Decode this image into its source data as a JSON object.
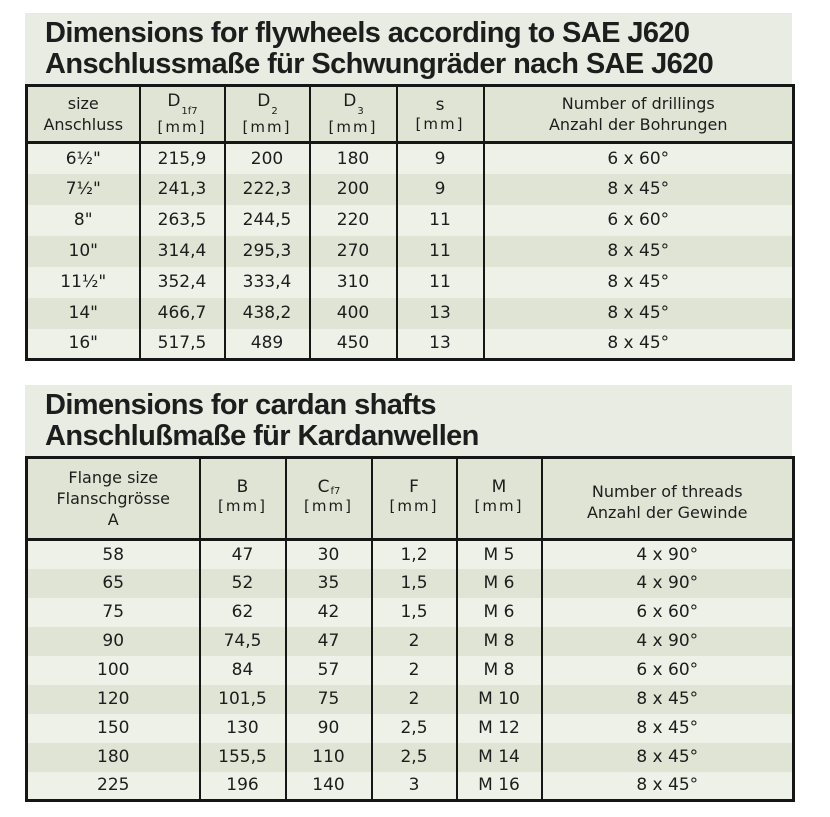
{
  "colors": {
    "page_bg": "#ffffff",
    "panel_bg": "#e9ece2",
    "row_light": "#eef1e8",
    "row_dark": "#dfe4d5",
    "header_bg": "#dfe4d5",
    "border": "#161616",
    "text": "#1d1d1d"
  },
  "fly": {
    "title_en": "Dimensions for flywheels according to SAE J620",
    "title_de": "Anschlussmaße für Schwungräder nach SAE J620",
    "col_size_1": "size",
    "col_size_2": "Anschluss",
    "col_d1_sym": "D",
    "col_d1_sub": "1f7",
    "col_d1_unit": "[mm]",
    "col_d2_sym": "D",
    "col_d2_sub": "2",
    "col_d2_unit": "[mm]",
    "col_d3_sym": "D",
    "col_d3_sub": "3",
    "col_d3_unit": "[mm]",
    "col_s_sym": "s",
    "col_s_unit": "[mm]",
    "col_drill_1": "Number of drillings",
    "col_drill_2": "Anzahl der Bohrungen",
    "rows": [
      [
        "6½\"",
        "215,9",
        "200",
        "180",
        "9",
        "6 x 60°"
      ],
      [
        "7½\"",
        "241,3",
        "222,3",
        "200",
        "9",
        "8 x 45°"
      ],
      [
        "8\"",
        "263,5",
        "244,5",
        "220",
        "11",
        "6 x 60°"
      ],
      [
        "10\"",
        "314,4",
        "295,3",
        "270",
        "11",
        "8 x 45°"
      ],
      [
        "11½\"",
        "352,4",
        "333,4",
        "310",
        "11",
        "8 x 45°"
      ],
      [
        "14\"",
        "466,7",
        "438,2",
        "400",
        "13",
        "8 x 45°"
      ],
      [
        "16\"",
        "517,5",
        "489",
        "450",
        "13",
        "8 x 45°"
      ]
    ]
  },
  "cardan": {
    "title_en": "Dimensions for cardan shafts",
    "title_de": "Anschlußmaße für Kardanwellen",
    "col_a_1": "Flange size",
    "col_a_2": "Flanschgrösse",
    "col_a_3": "A",
    "col_b_sym": "B",
    "col_b_unit": "[mm]",
    "col_c_sym": "C",
    "col_c_sub": "f7",
    "col_c_unit": "[mm]",
    "col_f_sym": "F",
    "col_f_unit": "[mm]",
    "col_m_sym": "M",
    "col_m_unit": "[mm]",
    "col_thr_1": "Number of threads",
    "col_thr_2": "Anzahl der Gewinde",
    "rows": [
      [
        "58",
        "47",
        "30",
        "1,2",
        "M 5",
        "4 x 90°"
      ],
      [
        "65",
        "52",
        "35",
        "1,5",
        "M 6",
        "4 x 90°"
      ],
      [
        "75",
        "62",
        "42",
        "1,5",
        "M 6",
        "6 x 60°"
      ],
      [
        "90",
        "74,5",
        "47",
        "2",
        "M 8",
        "4 x 90°"
      ],
      [
        "100",
        "84",
        "57",
        "2",
        "M 8",
        "6 x 60°"
      ],
      [
        "120",
        "101,5",
        "75",
        "2",
        "M 10",
        "8 x 45°"
      ],
      [
        "150",
        "130",
        "90",
        "2,5",
        "M 12",
        "8 x 45°"
      ],
      [
        "180",
        "155,5",
        "110",
        "2,5",
        "M 14",
        "8 x 45°"
      ],
      [
        "225",
        "196",
        "140",
        "3",
        "M 16",
        "8 x 45°"
      ]
    ]
  }
}
